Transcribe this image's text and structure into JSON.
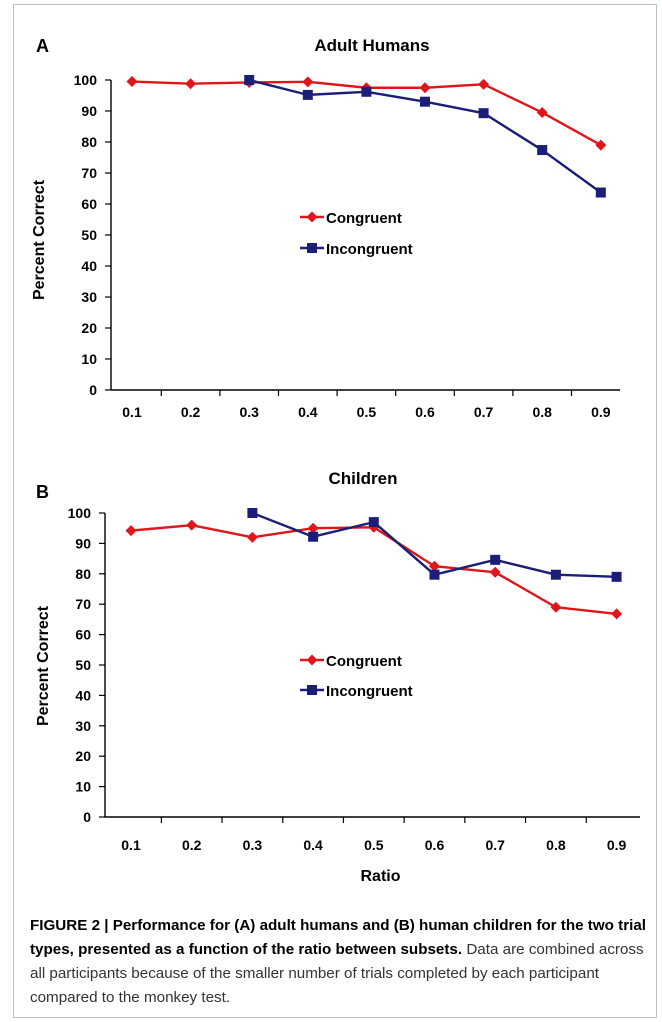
{
  "chart_data": [
    {
      "panel_letter": "A",
      "type": "line",
      "title": "Adult Humans",
      "xlabel": "",
      "ylabel": "Percent Correct",
      "categories": [
        "0.1",
        "0.2",
        "0.3",
        "0.4",
        "0.5",
        "0.6",
        "0.7",
        "0.8",
        "0.9"
      ],
      "ylim": [
        0,
        100
      ],
      "yticks": [
        "0",
        "10",
        "20",
        "30",
        "40",
        "50",
        "60",
        "70",
        "80",
        "90",
        "100"
      ],
      "legend_position": "center",
      "grid": false,
      "series": [
        {
          "name": "Congruent",
          "color": "#e0161b",
          "marker": "diamond",
          "values": [
            99.5,
            98.8,
            99.2,
            99.4,
            97.5,
            97.5,
            98.6,
            89.5,
            79.0
          ]
        },
        {
          "name": "Incongruent",
          "color": "#1b1e78",
          "marker": "square",
          "values": [
            null,
            null,
            100.0,
            95.2,
            96.2,
            93.0,
            89.3,
            77.4,
            63.7
          ]
        }
      ]
    },
    {
      "panel_letter": "B",
      "type": "line",
      "title": "Children",
      "xlabel": "Ratio",
      "ylabel": "Percent Correct",
      "categories": [
        "0.1",
        "0.2",
        "0.3",
        "0.4",
        "0.5",
        "0.6",
        "0.7",
        "0.8",
        "0.9"
      ],
      "ylim": [
        0,
        100
      ],
      "yticks": [
        "0",
        "10",
        "20",
        "30",
        "40",
        "50",
        "60",
        "70",
        "80",
        "90",
        "100"
      ],
      "legend_position": "center",
      "grid": false,
      "series": [
        {
          "name": "Congruent",
          "color": "#e0161b",
          "marker": "diamond",
          "values": [
            94.2,
            96.0,
            92.0,
            95.0,
            95.3,
            82.5,
            80.5,
            69.0,
            66.8
          ]
        },
        {
          "name": "Incongruent",
          "color": "#1b1e78",
          "marker": "square",
          "values": [
            null,
            null,
            100.0,
            92.2,
            97.0,
            79.7,
            84.6,
            79.7,
            79.0
          ]
        }
      ]
    }
  ],
  "caption": {
    "bold": "FIGURE 2 | Performance for (A) adult humans and (B) human children for the two trial types, presented as a function of the ratio between subsets.",
    "text": "Data are combined across all participants because of the smaller number of trials completed by each participant compared to the monkey test."
  }
}
